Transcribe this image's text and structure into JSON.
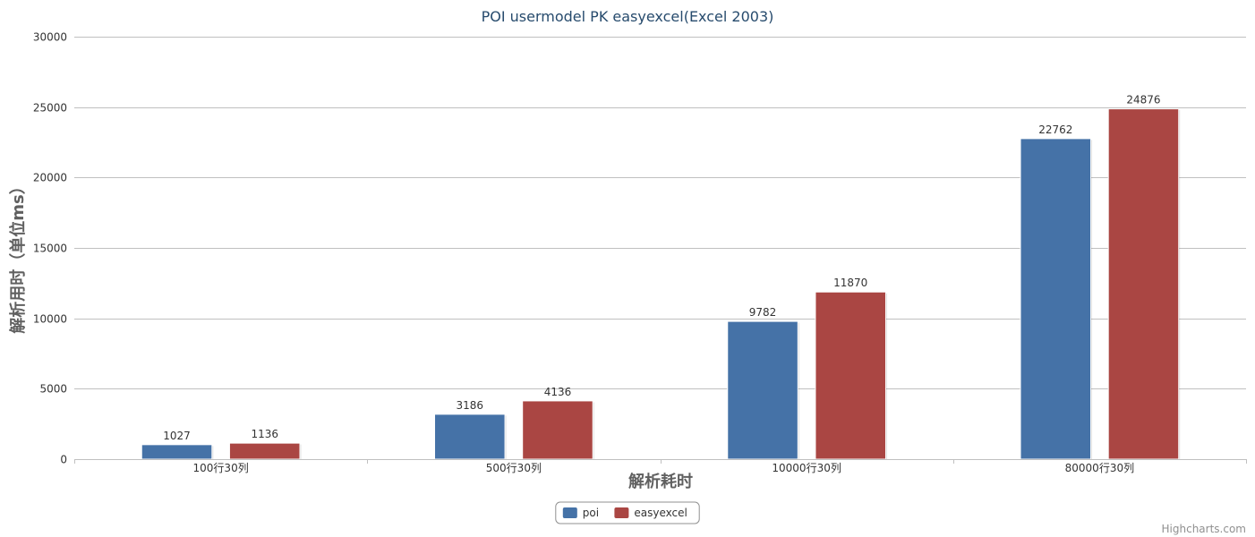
{
  "chart_data": {
    "type": "bar",
    "title": "POI usermodel PK easyexcel(Excel 2003)",
    "xlabel": "解析耗时",
    "ylabel": "解析用时（单位ms）",
    "categories": [
      "100行30列",
      "500行30列",
      "10000行30列",
      "80000行30列"
    ],
    "series": [
      {
        "name": "poi",
        "color": "#4572a7",
        "values": [
          1027,
          3186,
          9782,
          22762
        ]
      },
      {
        "name": "easyexcel",
        "color": "#aa4643",
        "values": [
          1136,
          4136,
          11870,
          24876
        ]
      }
    ],
    "ylim": [
      0,
      30000
    ],
    "yticks": [
      0,
      5000,
      10000,
      15000,
      20000,
      25000,
      30000
    ],
    "grid": true,
    "legend_position": "bottom-center",
    "data_labels": true
  },
  "credits": "Highcharts.com",
  "colors": {
    "title": "#274b6d",
    "grid": "#c0c0c0",
    "axis_title": "#606060",
    "credits": "#909090"
  }
}
